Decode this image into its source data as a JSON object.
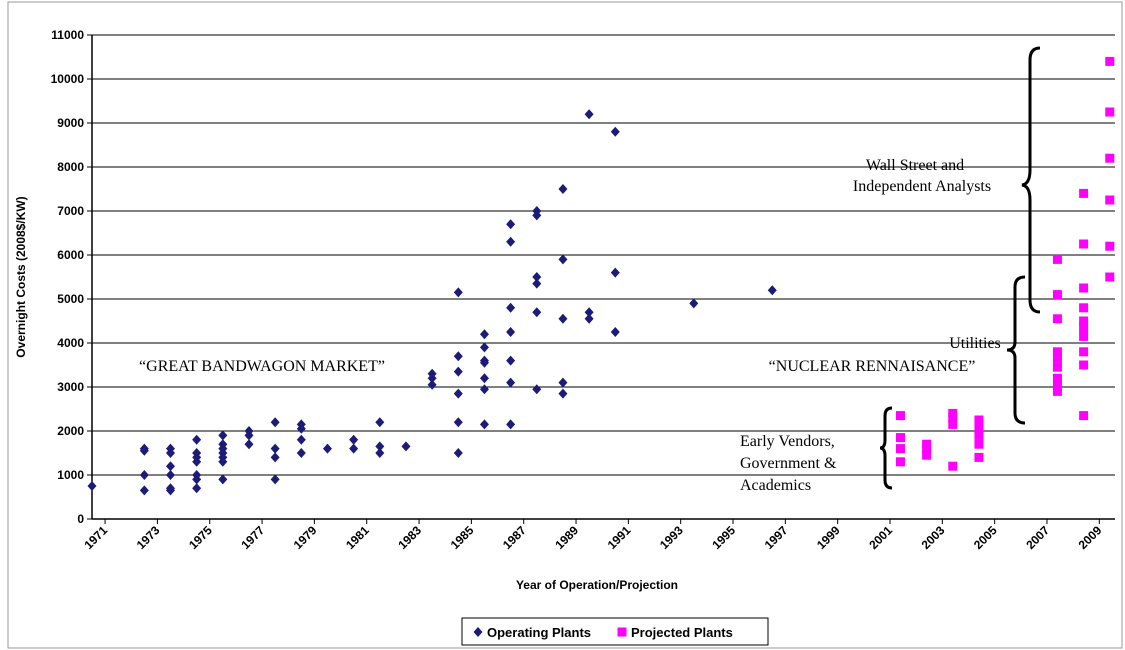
{
  "chart_data": {
    "type": "scatter",
    "x_label": "Year of Operation/Projection",
    "y_label": "Overnight Costs (2008$/KW)",
    "xlim": [
      1970.5,
      2009.6
    ],
    "xticks": [
      1971,
      1973,
      1975,
      1977,
      1979,
      1981,
      1983,
      1985,
      1987,
      1989,
      1991,
      1993,
      1995,
      1997,
      1999,
      2001,
      2003,
      2005,
      2007,
      2009
    ],
    "ylim": [
      0,
      11000
    ],
    "yticks": [
      0,
      1000,
      2000,
      3000,
      4000,
      5000,
      6000,
      7000,
      8000,
      9000,
      10000,
      11000
    ],
    "grid": true,
    "legend": "bottom",
    "annotations": [
      "“GREAT BANDWAGON MARKET”",
      "Wall Street and",
      "Independent Analysts",
      "Utilities",
      "“NUCLEAR RENNAISANCE”",
      "Early Vendors,",
      "Government &",
      "Academics"
    ],
    "series": [
      {
        "name": "Operating Plants",
        "color": "#1c1c78",
        "marker": "diamond",
        "x": [
          1970.5,
          1972.5,
          1972.5,
          1972.5,
          1972.5,
          1973.5,
          1973.5,
          1973.5,
          1973.5,
          1973.5,
          1973.5,
          1974.5,
          1974.5,
          1974.5,
          1974.5,
          1974.5,
          1974.5,
          1974.5,
          1975.5,
          1975.5,
          1975.5,
          1975.5,
          1975.5,
          1975.5,
          1975.5,
          1976.5,
          1976.5,
          1976.5,
          1977.5,
          1977.5,
          1977.5,
          1977.5,
          1978.5,
          1978.5,
          1978.5,
          1978.5,
          1979.5,
          1980.5,
          1980.5,
          1981.5,
          1981.5,
          1981.5,
          1982.5,
          1983.5,
          1983.5,
          1983.5,
          1984.5,
          1984.5,
          1984.5,
          1984.5,
          1984.5,
          1984.5,
          1985.5,
          1985.5,
          1985.5,
          1985.5,
          1985.5,
          1985.5,
          1985.5,
          1986.5,
          1986.5,
          1986.5,
          1986.5,
          1986.5,
          1986.5,
          1986.5,
          1987.5,
          1987.5,
          1987.5,
          1987.5,
          1987.5,
          1987.5,
          1988.5,
          1988.5,
          1988.5,
          1988.5,
          1988.5,
          1989.5,
          1989.5,
          1989.5,
          1990.5,
          1990.5,
          1990.5,
          1993.5,
          1996.5
        ],
        "values": [
          750,
          1550,
          1600,
          1000,
          650,
          1600,
          1500,
          1200,
          1000,
          700,
          650,
          1800,
          1500,
          1400,
          1300,
          1000,
          900,
          700,
          1900,
          1700,
          1600,
          1500,
          1400,
          1300,
          900,
          2000,
          1900,
          1700,
          2200,
          1600,
          1400,
          900,
          2150,
          2050,
          1800,
          1500,
          1600,
          1800,
          1600,
          2200,
          1650,
          1500,
          1650,
          3300,
          3200,
          3050,
          5150,
          3700,
          3350,
          2850,
          2200,
          1500,
          4200,
          3900,
          3600,
          3550,
          3200,
          2950,
          2150,
          6700,
          6300,
          4800,
          4250,
          3600,
          3100,
          2150,
          7000,
          6900,
          5500,
          5350,
          4700,
          2950,
          7500,
          5900,
          4550,
          3100,
          2850,
          9200,
          4700,
          4550,
          8800,
          5600,
          4250,
          4900,
          5200
        ]
      },
      {
        "name": "Projected Plants",
        "color": "#ff00ff",
        "marker": "square",
        "x": [
          2001.4,
          2001.4,
          2001.4,
          2001.4,
          2002.4,
          2002.4,
          2002.4,
          2003.4,
          2003.4,
          2003.4,
          2003.4,
          2004.4,
          2004.4,
          2004.4,
          2004.4,
          2004.4,
          2007.4,
          2007.4,
          2007.4,
          2007.4,
          2007.4,
          2007.4,
          2007.4,
          2007.4,
          2007.4,
          2008.4,
          2008.4,
          2008.4,
          2008.4,
          2008.4,
          2008.4,
          2008.4,
          2008.4,
          2008.4,
          2008.4,
          2009.4,
          2009.4,
          2009.4,
          2009.4,
          2009.4,
          2009.4
        ],
        "values": [
          2350,
          1850,
          1600,
          1300,
          1700,
          1600,
          1450,
          2400,
          2300,
          2150,
          1200,
          2250,
          2050,
          1900,
          1700,
          1400,
          5900,
          5100,
          4550,
          3800,
          3650,
          3450,
          3200,
          3050,
          2900,
          7400,
          6250,
          5250,
          4800,
          4500,
          4350,
          4150,
          3800,
          3500,
          2350,
          10400,
          9250,
          8200,
          7250,
          6200,
          5500
        ]
      }
    ]
  }
}
